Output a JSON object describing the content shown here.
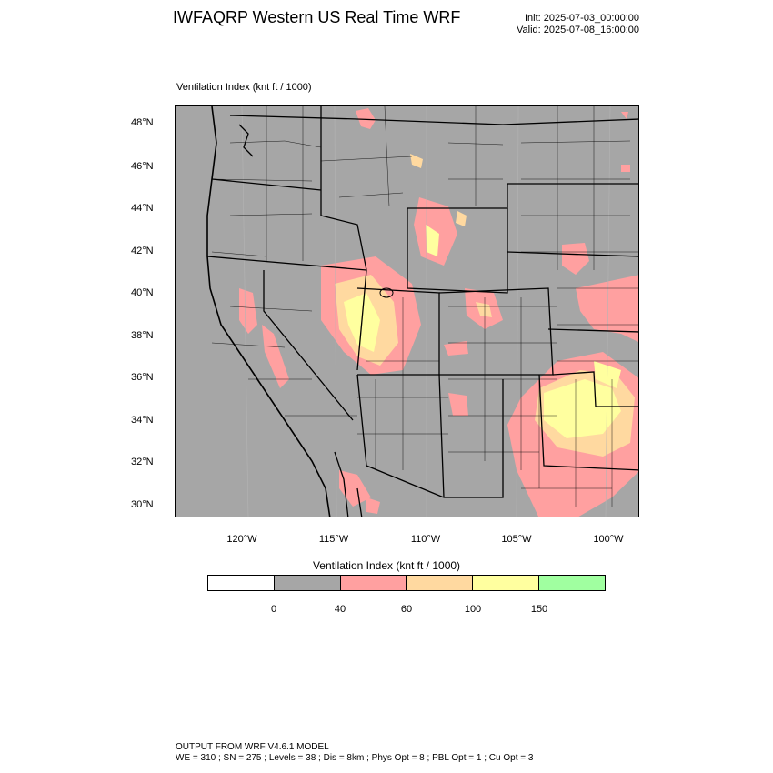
{
  "header": {
    "title": "IWFAQRP Western US Real Time WRF",
    "init": "Init: 2025-07-03_00:00:00",
    "valid": "Valid: 2025-07-08_16:00:00"
  },
  "map": {
    "subtitle": "Ventilation Index   (knt ft / 1000)",
    "background_color": "#a6a6a6",
    "lat_labels": [
      "48°N",
      "46°N",
      "44°N",
      "42°N",
      "40°N",
      "38°N",
      "36°N",
      "34°N",
      "32°N",
      "30°N"
    ],
    "lon_labels": [
      "120°W",
      "115°W",
      "110°W",
      "105°W",
      "100°W"
    ]
  },
  "colorbar": {
    "title": "Ventilation Index   (knt ft / 1000)",
    "colors": [
      "#ffffff",
      "#a6a6a6",
      "#ffa0a0",
      "#ffd9a0",
      "#ffff9f",
      "#a0ffa0"
    ],
    "ticks": [
      "0",
      "40",
      "60",
      "100",
      "150"
    ]
  },
  "footer": {
    "line1": "OUTPUT FROM WRF V4.6.1 MODEL",
    "line2": "WE = 310 ; SN = 275 ; Levels = 38 ; Dis = 8km ; Phys Opt = 8 ; PBL Opt = 1 ; Cu Opt = 3"
  }
}
